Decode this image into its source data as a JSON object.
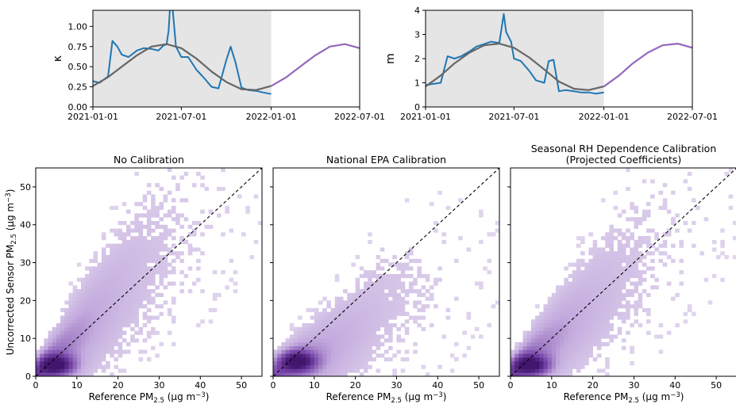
{
  "chart_data": [
    {
      "type": "line",
      "ylabel": "κ",
      "ylim": [
        0,
        1.2
      ],
      "xlim": [
        "2021-01-01",
        "2022-07-01"
      ],
      "xticks": [
        "2021-01-01",
        "2021-07-01",
        "2022-01-01",
        "2022-07-01"
      ],
      "yticks": [
        "0.00",
        "0.25",
        "0.50",
        "0.75",
        "1.00"
      ],
      "shaded_region": [
        "2021-01-01",
        "2022-01-01"
      ],
      "colors": {
        "observed": "#1f77b4",
        "fit": "#666666",
        "projection": "#9467bd",
        "shade": "#e5e5e5"
      },
      "series": [
        {
          "role": "observed",
          "x": [
            "2021-01-01",
            "2021-01-15",
            "2021-02-01",
            "2021-02-10",
            "2021-02-20",
            "2021-03-01",
            "2021-03-15",
            "2021-04-01",
            "2021-04-15",
            "2021-05-01",
            "2021-05-15",
            "2021-05-25",
            "2021-06-01",
            "2021-06-05",
            "2021-06-08",
            "2021-06-12",
            "2021-06-20",
            "2021-07-01",
            "2021-07-15",
            "2021-08-01",
            "2021-08-15",
            "2021-09-01",
            "2021-09-15",
            "2021-10-01",
            "2021-10-10",
            "2021-10-20",
            "2021-11-01",
            "2021-11-15",
            "2021-12-01",
            "2021-12-15",
            "2022-01-01"
          ],
          "y": [
            0.32,
            0.3,
            0.38,
            0.82,
            0.75,
            0.65,
            0.62,
            0.7,
            0.73,
            0.72,
            0.7,
            0.76,
            0.78,
            0.95,
            1.25,
            1.3,
            0.75,
            0.62,
            0.62,
            0.46,
            0.37,
            0.25,
            0.23,
            0.58,
            0.75,
            0.55,
            0.24,
            0.21,
            0.2,
            0.18,
            0.16
          ]
        },
        {
          "role": "fit",
          "x": [
            "2021-01-01",
            "2021-02-01",
            "2021-03-01",
            "2021-04-01",
            "2021-05-01",
            "2021-06-01",
            "2021-07-01",
            "2021-08-01",
            "2021-09-01",
            "2021-10-01",
            "2021-11-01",
            "2021-12-01",
            "2022-01-01"
          ],
          "y": [
            0.26,
            0.37,
            0.5,
            0.64,
            0.75,
            0.78,
            0.73,
            0.6,
            0.44,
            0.31,
            0.22,
            0.21,
            0.26
          ]
        },
        {
          "role": "projection",
          "x": [
            "2022-01-01",
            "2022-02-01",
            "2022-03-01",
            "2022-04-01",
            "2022-05-01",
            "2022-06-01",
            "2022-07-01"
          ],
          "y": [
            0.26,
            0.37,
            0.5,
            0.64,
            0.75,
            0.78,
            0.73
          ]
        }
      ]
    },
    {
      "type": "line",
      "ylabel": "m",
      "ylim": [
        0,
        4
      ],
      "xlim": [
        "2021-01-01",
        "2022-07-01"
      ],
      "xticks": [
        "2021-01-01",
        "2021-07-01",
        "2022-01-01",
        "2022-07-01"
      ],
      "yticks": [
        "0",
        "1",
        "2",
        "3",
        "4"
      ],
      "shaded_region": [
        "2021-01-01",
        "2022-01-01"
      ],
      "colors": {
        "observed": "#1f77b4",
        "fit": "#666666",
        "projection": "#9467bd",
        "shade": "#e5e5e5"
      },
      "series": [
        {
          "role": "observed",
          "x": [
            "2021-01-01",
            "2021-01-15",
            "2021-02-01",
            "2021-02-15",
            "2021-03-01",
            "2021-03-15",
            "2021-04-01",
            "2021-04-15",
            "2021-05-01",
            "2021-05-15",
            "2021-06-01",
            "2021-06-10",
            "2021-06-15",
            "2021-06-25",
            "2021-07-01",
            "2021-07-15",
            "2021-08-01",
            "2021-08-15",
            "2021-09-01",
            "2021-09-10",
            "2021-09-20",
            "2021-10-01",
            "2021-10-15",
            "2021-11-01",
            "2021-11-15",
            "2021-12-01",
            "2021-12-15",
            "2022-01-01"
          ],
          "y": [
            0.9,
            0.95,
            1.0,
            2.1,
            2.0,
            2.1,
            2.3,
            2.5,
            2.6,
            2.7,
            2.65,
            3.85,
            3.1,
            2.7,
            2.0,
            1.9,
            1.5,
            1.1,
            1.0,
            1.9,
            1.95,
            0.65,
            0.7,
            0.65,
            0.6,
            0.6,
            0.55,
            0.6
          ]
        },
        {
          "role": "fit",
          "x": [
            "2021-01-01",
            "2021-02-01",
            "2021-03-01",
            "2021-04-01",
            "2021-05-01",
            "2021-06-01",
            "2021-07-01",
            "2021-08-01",
            "2021-09-01",
            "2021-10-01",
            "2021-11-01",
            "2021-12-01",
            "2022-01-01"
          ],
          "y": [
            0.85,
            1.3,
            1.8,
            2.25,
            2.55,
            2.62,
            2.45,
            2.05,
            1.55,
            1.05,
            0.75,
            0.7,
            0.85
          ]
        },
        {
          "role": "projection",
          "x": [
            "2022-01-01",
            "2022-02-01",
            "2022-03-01",
            "2022-04-01",
            "2022-05-01",
            "2022-06-01",
            "2022-07-01"
          ],
          "y": [
            0.85,
            1.3,
            1.8,
            2.25,
            2.55,
            2.62,
            2.45
          ]
        }
      ]
    },
    {
      "type": "heatmap",
      "title": "No Calibration",
      "xlabel": "Reference PM",
      "ylabel": "Uncorrected Sensor PM",
      "xlim": [
        0,
        55
      ],
      "ylim": [
        0,
        55
      ],
      "xticks": [
        "0",
        "10",
        "20",
        "30",
        "40",
        "50"
      ],
      "yticks": [
        "0",
        "10",
        "20",
        "30",
        "40",
        "50"
      ],
      "colormap": "purples",
      "identity_line": true,
      "density_ridge": {
        "x": [
          0,
          5,
          10,
          15,
          20,
          25,
          30,
          35,
          40
        ],
        "y": [
          0,
          5,
          10,
          16,
          22,
          28,
          33,
          38,
          43
        ]
      },
      "density_peak": [
        5,
        3
      ]
    },
    {
      "type": "heatmap",
      "title": "National EPA Calibration",
      "xlabel": "Reference PM",
      "xlim": [
        0,
        55
      ],
      "ylim": [
        0,
        55
      ],
      "xticks": [
        "0",
        "10",
        "20",
        "30",
        "40",
        "50"
      ],
      "colormap": "purples",
      "identity_line": true,
      "density_ridge": {
        "x": [
          0,
          5,
          10,
          15,
          20,
          25,
          30,
          35,
          40
        ],
        "y": [
          0,
          3,
          5,
          8,
          12,
          17,
          21,
          23,
          24
        ]
      },
      "density_peak": [
        6,
        4
      ]
    },
    {
      "type": "heatmap",
      "title": "Seasonal RH Dependence Calibration\n(Projected Coefficients)",
      "xlabel": "Reference PM",
      "xlim": [
        0,
        55
      ],
      "ylim": [
        0,
        55
      ],
      "xticks": [
        "0",
        "10",
        "20",
        "30",
        "40",
        "50"
      ],
      "colormap": "purples",
      "identity_line": true,
      "density_ridge": {
        "x": [
          0,
          5,
          10,
          15,
          20,
          25,
          30,
          35,
          40
        ],
        "y": [
          0,
          5,
          9,
          14,
          19,
          24,
          29,
          34,
          38
        ]
      },
      "density_peak": [
        5,
        3
      ]
    }
  ],
  "labels": {
    "pm_sub": "2.5",
    "unit_prefix": "(µg m",
    "unit_exp": "−3",
    "unit_suffix": ")"
  }
}
